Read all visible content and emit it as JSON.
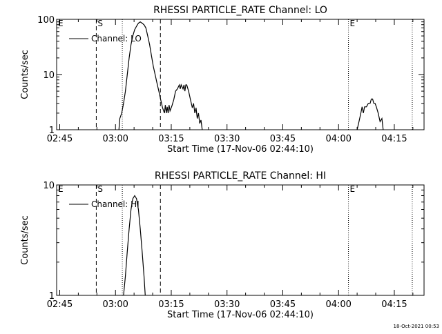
{
  "chart_data": [
    {
      "type": "line",
      "title": "RHESSI PARTICLE_RATE Channel: LO",
      "xlabel": "Start Time (17-Nov-06 02:44:10)",
      "ylabel": "Counts/sec",
      "yscale": "log",
      "xlim": [
        "02:44:10",
        "04:23:00"
      ],
      "ylim": [
        1,
        100
      ],
      "x_ticks": [
        "02:45",
        "03:00",
        "03:15",
        "03:30",
        "03:45",
        "04:00",
        "04:15"
      ],
      "y_ticks": [
        "1",
        "10",
        "100"
      ],
      "legend": "upper-left",
      "markers": [
        {
          "time": "02:44:10",
          "label": "E",
          "style": "dotted"
        },
        {
          "time": "02:54:50",
          "label": "S",
          "style": "dashed"
        },
        {
          "time": "03:01:50",
          "label": "",
          "style": "dotted"
        },
        {
          "time": "03:12:05",
          "label": "",
          "style": "dashed"
        },
        {
          "time": "04:02:40",
          "label": "E",
          "style": "dotted"
        },
        {
          "time": "04:19:50",
          "label": "",
          "style": "dotted"
        }
      ],
      "series": [
        {
          "name": "Channel: LO",
          "segments": [
            [
              [
                "03:00:55",
                1.0
              ],
              [
                "03:01:10",
                1.6
              ],
              [
                "03:01:40",
                2.0
              ],
              [
                "03:02:10",
                3.0
              ],
              [
                "03:02:40",
                5.0
              ],
              [
                "03:03:10",
                10.0
              ],
              [
                "03:03:40",
                20.0
              ],
              [
                "03:04:10",
                35.0
              ],
              [
                "03:04:40",
                50.0
              ],
              [
                "03:05:10",
                65.0
              ],
              [
                "03:05:40",
                75.0
              ],
              [
                "03:06:10",
                85.0
              ],
              [
                "03:06:40",
                90.0
              ],
              [
                "03:07:10",
                85.0
              ],
              [
                "03:07:40",
                80.0
              ],
              [
                "03:08:10",
                70.0
              ],
              [
                "03:08:40",
                50.0
              ],
              [
                "03:09:10",
                35.0
              ],
              [
                "03:09:40",
                22.0
              ],
              [
                "03:10:10",
                14.0
              ],
              [
                "03:10:40",
                10.0
              ],
              [
                "03:11:10",
                7.0
              ],
              [
                "03:11:40",
                5.0
              ],
              [
                "03:12:10",
                3.5
              ],
              [
                "03:12:40",
                2.5
              ],
              [
                "03:13:10",
                2.0
              ],
              [
                "03:13:25",
                2.8
              ],
              [
                "03:13:40",
                2.0
              ],
              [
                "03:13:55",
                2.6
              ],
              [
                "03:14:10",
                2.0
              ],
              [
                "03:14:25",
                2.8
              ],
              [
                "03:14:40",
                2.2
              ],
              [
                "03:15:10",
                2.7
              ],
              [
                "03:15:40",
                3.5
              ],
              [
                "03:16:10",
                5.0
              ],
              [
                "03:16:40",
                5.5
              ],
              [
                "03:17:10",
                6.5
              ],
              [
                "03:17:25",
                5.5
              ],
              [
                "03:17:40",
                6.5
              ],
              [
                "03:18:10",
                5.5
              ],
              [
                "03:18:25",
                6.5
              ],
              [
                "03:18:40",
                5.0
              ],
              [
                "03:18:55",
                6.5
              ],
              [
                "03:19:10",
                6.5
              ],
              [
                "03:19:40",
                5.0
              ],
              [
                "03:20:10",
                3.5
              ],
              [
                "03:20:40",
                2.5
              ],
              [
                "03:21:00",
                3.0
              ],
              [
                "03:21:20",
                2.0
              ],
              [
                "03:21:40",
                2.5
              ],
              [
                "03:22:00",
                1.6
              ],
              [
                "03:22:20",
                2.0
              ],
              [
                "03:22:40",
                1.3
              ],
              [
                "03:23:00",
                1.5
              ],
              [
                "03:23:20",
                1.0
              ]
            ],
            [
              [
                "04:05:00",
                1.0
              ],
              [
                "04:05:30",
                1.4
              ],
              [
                "04:06:00",
                2.0
              ],
              [
                "04:06:20",
                2.6
              ],
              [
                "04:06:40",
                2.0
              ],
              [
                "04:07:00",
                2.6
              ],
              [
                "04:07:30",
                2.6
              ],
              [
                "04:08:00",
                3.0
              ],
              [
                "04:08:30",
                3.0
              ],
              [
                "04:08:50",
                3.6
              ],
              [
                "04:09:10",
                3.6
              ],
              [
                "04:09:30",
                3.0
              ],
              [
                "04:09:50",
                3.0
              ],
              [
                "04:10:10",
                2.6
              ],
              [
                "04:10:40",
                2.0
              ],
              [
                "04:11:10",
                1.4
              ],
              [
                "04:11:40",
                1.6
              ],
              [
                "04:12:00",
                1.0
              ]
            ]
          ]
        }
      ]
    },
    {
      "type": "line",
      "title": "RHESSI PARTICLE_RATE Channel: HI",
      "xlabel": "Start Time (17-Nov-06 02:44:10)",
      "ylabel": "Counts/sec",
      "yscale": "log",
      "xlim": [
        "02:44:10",
        "04:23:00"
      ],
      "ylim": [
        1,
        10
      ],
      "x_ticks": [
        "02:45",
        "03:00",
        "03:15",
        "03:30",
        "03:45",
        "04:00",
        "04:15"
      ],
      "y_ticks": [
        "1",
        "10"
      ],
      "legend": "upper-left",
      "markers": [
        {
          "time": "02:44:10",
          "label": "E",
          "style": "dotted"
        },
        {
          "time": "02:54:50",
          "label": "S",
          "style": "dashed"
        },
        {
          "time": "03:01:50",
          "label": "",
          "style": "dotted"
        },
        {
          "time": "03:12:05",
          "label": "",
          "style": "dashed"
        },
        {
          "time": "04:02:40",
          "label": "E",
          "style": "dotted"
        },
        {
          "time": "04:19:50",
          "label": "",
          "style": "dotted"
        }
      ],
      "series": [
        {
          "name": "Channel: HI",
          "segments": [
            [
              [
                "03:02:10",
                1.0
              ],
              [
                "03:02:40",
                1.5
              ],
              [
                "03:03:10",
                2.5
              ],
              [
                "03:03:40",
                4.0
              ],
              [
                "03:04:10",
                6.0
              ],
              [
                "03:04:40",
                7.5
              ],
              [
                "03:05:10",
                8.0
              ],
              [
                "03:05:40",
                7.5
              ],
              [
                "03:06:10",
                6.0
              ],
              [
                "03:06:40",
                4.0
              ],
              [
                "03:07:10",
                2.5
              ],
              [
                "03:07:40",
                1.5
              ],
              [
                "03:08:00",
                1.0
              ]
            ]
          ]
        }
      ]
    }
  ],
  "footer": {
    "timestamp": "18-Oct-2021 00:53"
  }
}
